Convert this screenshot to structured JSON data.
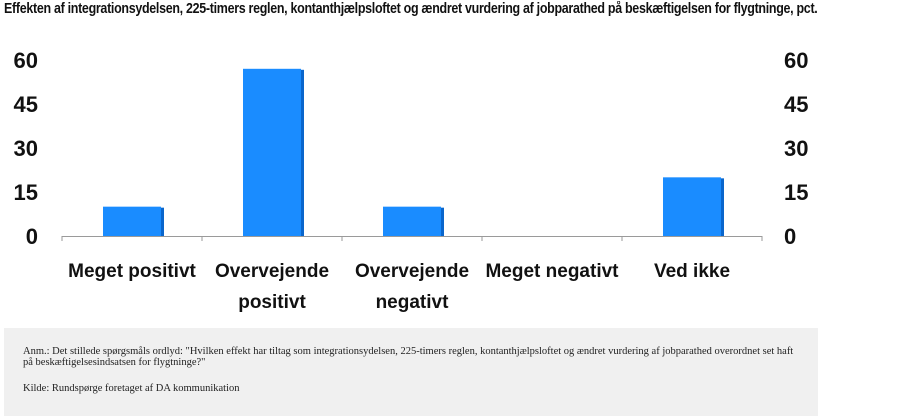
{
  "chart_data": {
    "type": "bar",
    "title": "Effekten af integrationsydelsen, 225-timers reglen, kontanthjælpsloftet og ændret vurdering af jobparathed på beskæftigelsen for flygtninge, pct.",
    "categories": [
      [
        "Meget positivt"
      ],
      [
        "Overvejende",
        "positivt"
      ],
      [
        "Overvejende",
        "negativt"
      ],
      [
        "Meget negativt"
      ],
      [
        "Ved ikke"
      ]
    ],
    "values": [
      10,
      57,
      10,
      0,
      20
    ],
    "ylim": [
      0,
      60
    ],
    "yticks": [
      "0",
      "15",
      "30",
      "45",
      "60"
    ],
    "secondary_axis": true,
    "bar_color": "#1a8cff",
    "bar_shadow_color": "#0a66cc",
    "grid": false
  },
  "note": {
    "text": "Anm.:  Det stillede spørgsmåls ordlyd: \"Hvilken effekt har tiltag som integrationsydelsen, 225-timers reglen, kontanthjælpsloftet og ændret vurdering af jobparathed overordnet set haft på beskæftigelsesindsatsen for flygtninge?\"",
    "source": "Kilde: Rundspørge foretaget af DA kommunikation"
  }
}
